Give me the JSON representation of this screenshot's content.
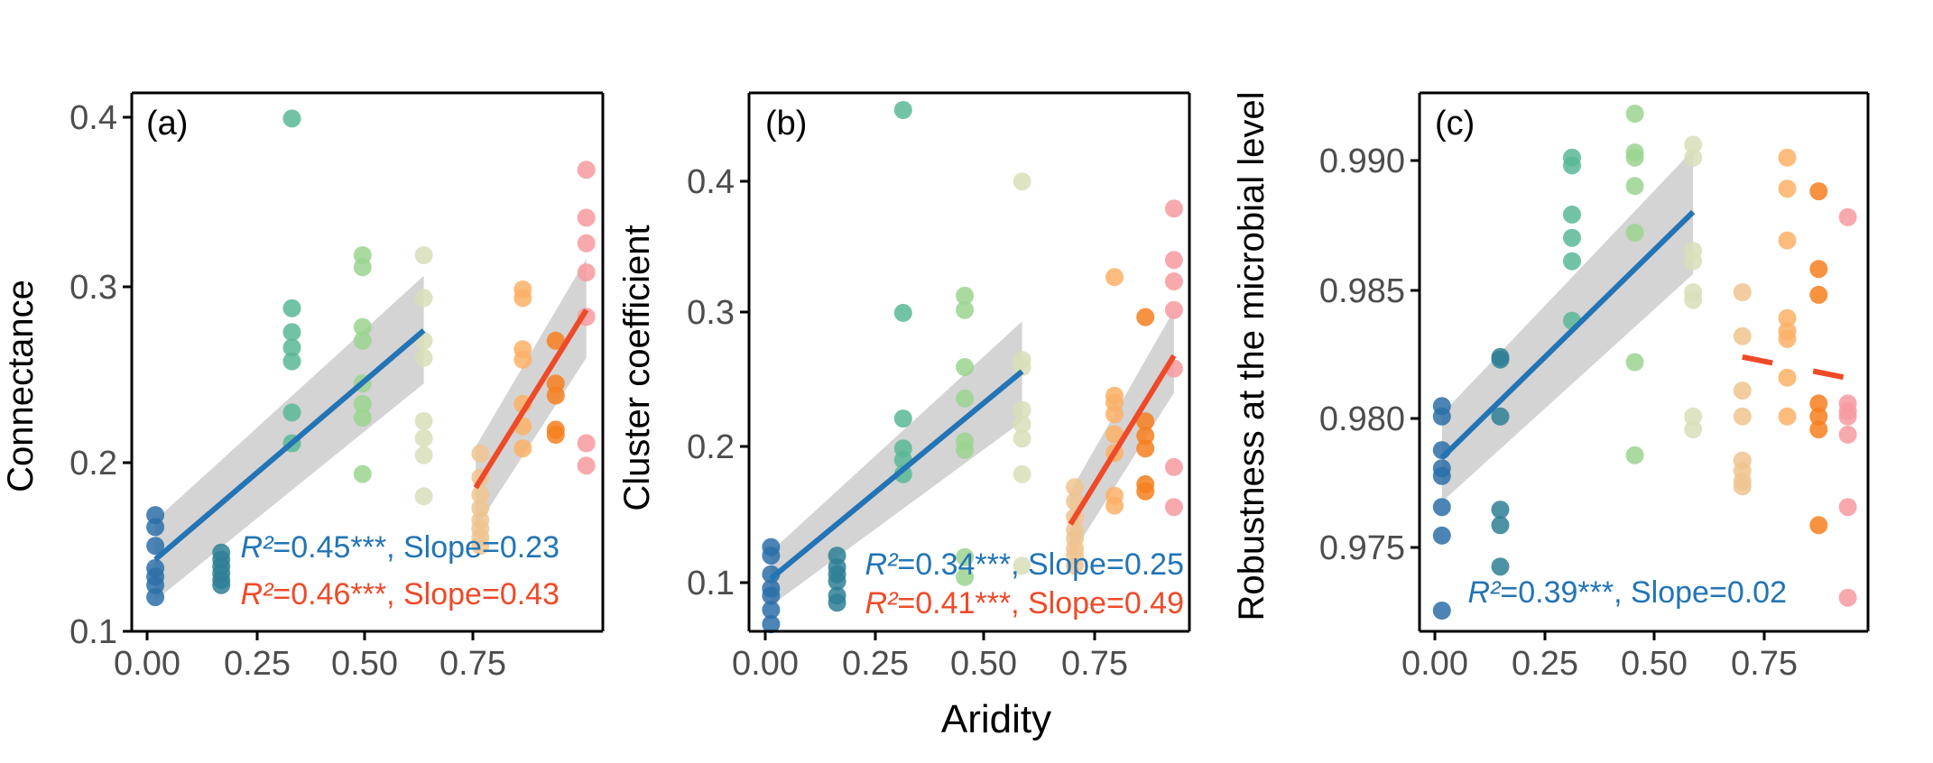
{
  "figure": {
    "shared_xlabel": "Aridity",
    "colors": {
      "group_1": "#2c6fa8",
      "group_2": "#2f7f95",
      "group_3": "#59b996",
      "group_4": "#9bd48f",
      "group_5": "#d8dfb8",
      "group_6": "#eec48f",
      "group_7": "#fbb066",
      "group_8": "#f47f1f",
      "group_9": "#f79aa0",
      "fit_low": "#2274b5",
      "fit_high": "#ee4a28",
      "band": "#bdbdbd"
    }
  },
  "chart_data": [
    {
      "type": "scatter",
      "panel": "(a)",
      "xlabel": "",
      "ylabel": "Connectance",
      "xlim": [
        -0.04,
        0.96
      ],
      "ylim": [
        0.1,
        0.415
      ],
      "xticks": [
        "0.00",
        "0.25",
        "0.50",
        "0.75"
      ],
      "yticks": [
        "0.1",
        "0.2",
        "0.3",
        "0.4"
      ],
      "groups": [
        {
          "x": 0.01,
          "y": [
            0.168,
            0.161,
            0.15,
            0.137,
            0.132,
            0.127,
            0.12
          ]
        },
        {
          "x": 0.15,
          "y": [
            0.146,
            0.142,
            0.138,
            0.134,
            0.13,
            0.127
          ]
        },
        {
          "x": 0.3,
          "y": [
            0.4,
            0.289,
            0.275,
            0.266,
            0.258,
            0.228,
            0.21
          ]
        },
        {
          "x": 0.45,
          "y": [
            0.32,
            0.313,
            0.278,
            0.27,
            0.245,
            0.233,
            0.225,
            0.192
          ]
        },
        {
          "x": 0.58,
          "y": [
            0.32,
            0.295,
            0.27,
            0.26,
            0.223,
            0.213,
            0.203,
            0.179
          ]
        },
        {
          "x": 0.7,
          "y": [
            0.204,
            0.19,
            0.18,
            0.172,
            0.165,
            0.16,
            0.155,
            0.15
          ]
        },
        {
          "x": 0.79,
          "y": [
            0.3,
            0.295,
            0.265,
            0.259,
            0.233,
            0.22,
            0.207
          ]
        },
        {
          "x": 0.86,
          "y": [
            0.27,
            0.245,
            0.238,
            0.218,
            0.215
          ]
        },
        {
          "x": 0.925,
          "y": [
            0.37,
            0.342,
            0.327,
            0.31,
            0.284,
            0.21,
            0.197
          ]
        }
      ],
      "fits": [
        {
          "x": [
            0.01,
            0.58
          ],
          "y": [
            0.142,
            0.276
          ],
          "band_lower": [
            0.118,
            0.245
          ],
          "band_upper": [
            0.165,
            0.308
          ]
        },
        {
          "x": [
            0.69,
            0.925
          ],
          "y": [
            0.184,
            0.288
          ],
          "band_lower": [
            0.16,
            0.26
          ],
          "band_upper": [
            0.208,
            0.318
          ]
        }
      ],
      "annotations": [
        {
          "r2": "R²",
          "rest": "=0.45***, Slope=0.23"
        },
        {
          "r2": "R²",
          "rest": "=0.46***, Slope=0.43"
        }
      ]
    },
    {
      "type": "scatter",
      "panel": "(b)",
      "xlabel": "Aridity",
      "ylabel": "Cluster coefficient",
      "xlim": [
        -0.04,
        0.96
      ],
      "ylim": [
        0.085,
        0.462
      ],
      "xticks": [
        "0.00",
        "0.25",
        "0.50",
        "0.75"
      ],
      "yticks": [
        "0.1",
        "0.2",
        "0.3",
        "0.4"
      ],
      "groups": [
        {
          "x": 0.01,
          "y": [
            0.144,
            0.138,
            0.125,
            0.115,
            0.11,
            0.1,
            0.09
          ]
        },
        {
          "x": 0.16,
          "y": [
            0.138,
            0.13,
            0.125,
            0.12,
            0.11,
            0.105
          ]
        },
        {
          "x": 0.31,
          "y": [
            0.45,
            0.308,
            0.234,
            0.213,
            0.205,
            0.195
          ]
        },
        {
          "x": 0.45,
          "y": [
            0.32,
            0.31,
            0.27,
            0.248,
            0.218,
            0.212,
            0.137,
            0.123
          ]
        },
        {
          "x": 0.58,
          "y": [
            0.4,
            0.275,
            0.27,
            0.24,
            0.23,
            0.22,
            0.195,
            0.131
          ]
        },
        {
          "x": 0.7,
          "y": [
            0.186,
            0.176,
            0.165,
            0.156,
            0.15,
            0.143,
            0.138,
            0.131
          ]
        },
        {
          "x": 0.79,
          "y": [
            0.333,
            0.25,
            0.245,
            0.237,
            0.223,
            0.21,
            0.18,
            0.173
          ]
        },
        {
          "x": 0.86,
          "y": [
            0.305,
            0.232,
            0.222,
            0.213,
            0.188,
            0.183
          ]
        },
        {
          "x": 0.925,
          "y": [
            0.381,
            0.345,
            0.33,
            0.31,
            0.269,
            0.2,
            0.172
          ]
        }
      ],
      "fits": [
        {
          "x": [
            0.01,
            0.58
          ],
          "y": [
            0.122,
            0.267
          ],
          "band_lower": [
            0.103,
            0.232
          ],
          "band_upper": [
            0.141,
            0.302
          ]
        },
        {
          "x": [
            0.69,
            0.925
          ],
          "y": [
            0.16,
            0.278
          ],
          "band_lower": [
            0.137,
            0.252
          ],
          "band_upper": [
            0.183,
            0.31
          ]
        }
      ],
      "annotations": [
        {
          "r2": "R²",
          "rest": "=0.34***, Slope=0.25"
        },
        {
          "r2": "R²",
          "rest": "=0.41***, Slope=0.49"
        }
      ]
    },
    {
      "type": "scatter",
      "panel": "(c)",
      "xlabel": "",
      "ylabel": "Robustness at the microbial level",
      "xlim": [
        -0.04,
        0.96
      ],
      "ylim": [
        0.9717,
        0.9925
      ],
      "xticks": [
        "0.00",
        "0.25",
        "0.50",
        "0.75"
      ],
      "yticks": [
        "0.975",
        "0.980",
        "0.985",
        "0.990"
      ],
      "groups": [
        {
          "x": 0.01,
          "y": [
            0.9804,
            0.98,
            0.9787,
            0.978,
            0.9777,
            0.9765,
            0.9754,
            0.9725
          ]
        },
        {
          "x": 0.14,
          "y": [
            0.9823,
            0.9822,
            0.98,
            0.9764,
            0.9758,
            0.9742
          ]
        },
        {
          "x": 0.3,
          "y": [
            0.99,
            0.9897,
            0.9878,
            0.9869,
            0.986,
            0.9837
          ]
        },
        {
          "x": 0.44,
          "y": [
            0.9917,
            0.9902,
            0.99,
            0.9889,
            0.9871,
            0.9821,
            0.9785
          ]
        },
        {
          "x": 0.57,
          "y": [
            0.9905,
            0.99,
            0.9864,
            0.986,
            0.9848,
            0.9845,
            0.98,
            0.9795
          ]
        },
        {
          "x": 0.68,
          "y": [
            0.9848,
            0.9831,
            0.981,
            0.98,
            0.9783,
            0.9779,
            0.9775,
            0.9773
          ]
        },
        {
          "x": 0.78,
          "y": [
            0.99,
            0.9888,
            0.9868,
            0.9838,
            0.9833,
            0.983,
            0.9815,
            0.98
          ]
        },
        {
          "x": 0.85,
          "y": [
            0.9887,
            0.9857,
            0.9847,
            0.9805,
            0.98,
            0.9795,
            0.9758
          ]
        },
        {
          "x": 0.915,
          "y": [
            0.9877,
            0.9805,
            0.9802,
            0.98,
            0.9793,
            0.9765,
            0.973
          ]
        }
      ],
      "fits": [
        {
          "x": [
            0.01,
            0.57
          ],
          "y": [
            0.9784,
            0.9879
          ],
          "band_lower": [
            0.9767,
            0.9855
          ],
          "band_upper": [
            0.9801,
            0.9903
          ]
        },
        {
          "x": [
            0.68,
            0.91
          ],
          "y": [
            0.9823,
            0.9815
          ],
          "dashed": true
        }
      ],
      "annotations": [
        {
          "r2": "R²",
          "rest": "=0.39***, Slope=0.02"
        }
      ]
    }
  ]
}
